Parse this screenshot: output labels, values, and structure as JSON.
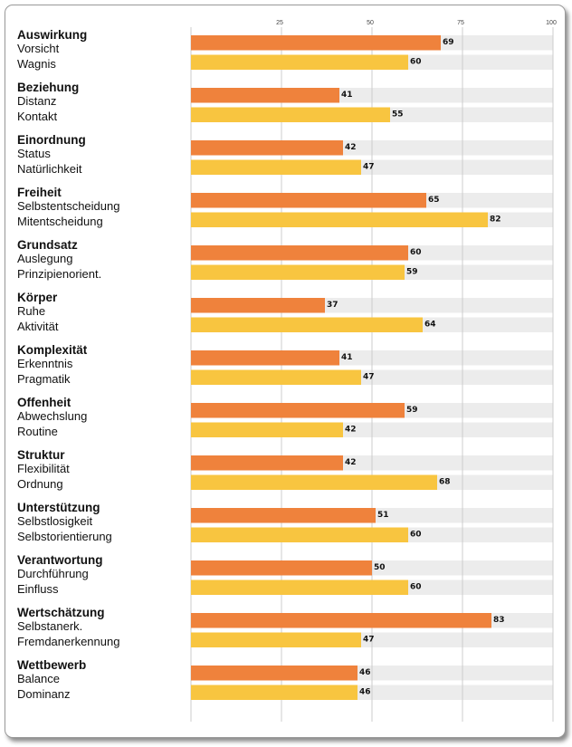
{
  "chart_data": {
    "type": "bar",
    "orientation": "horizontal",
    "xlim": [
      0,
      100
    ],
    "xticks": [
      25,
      50,
      75,
      100
    ],
    "grid": true,
    "colors": {
      "first": "#ef823c",
      "second": "#f8c540",
      "track": "#ececec",
      "grid": "#cccccc"
    },
    "groups": [
      {
        "name": "Auswirkung",
        "items": [
          {
            "label": "Vorsicht",
            "value": 69
          },
          {
            "label": "Wagnis",
            "value": 60
          }
        ]
      },
      {
        "name": "Beziehung",
        "items": [
          {
            "label": "Distanz",
            "value": 41
          },
          {
            "label": "Kontakt",
            "value": 55
          }
        ]
      },
      {
        "name": "Einordnung",
        "items": [
          {
            "label": "Status",
            "value": 42
          },
          {
            "label": "Natürlichkeit",
            "value": 47
          }
        ]
      },
      {
        "name": "Freiheit",
        "items": [
          {
            "label": "Selbstentscheidung",
            "value": 65
          },
          {
            "label": "Mitentscheidung",
            "value": 82
          }
        ]
      },
      {
        "name": "Grundsatz",
        "items": [
          {
            "label": "Auslegung",
            "value": 60
          },
          {
            "label": "Prinzipienorient.",
            "value": 59
          }
        ]
      },
      {
        "name": "Körper",
        "items": [
          {
            "label": "Ruhe",
            "value": 37
          },
          {
            "label": "Aktivität",
            "value": 64
          }
        ]
      },
      {
        "name": "Komplexität",
        "items": [
          {
            "label": "Erkenntnis",
            "value": 41
          },
          {
            "label": "Pragmatik",
            "value": 47
          }
        ]
      },
      {
        "name": "Offenheit",
        "items": [
          {
            "label": "Abwechslung",
            "value": 59
          },
          {
            "label": "Routine",
            "value": 42
          }
        ]
      },
      {
        "name": "Struktur",
        "items": [
          {
            "label": "Flexibilität",
            "value": 42
          },
          {
            "label": "Ordnung",
            "value": 68
          }
        ]
      },
      {
        "name": "Unterstützung",
        "items": [
          {
            "label": "Selbstlosigkeit",
            "value": 51
          },
          {
            "label": "Selbstorientierung",
            "value": 60
          }
        ]
      },
      {
        "name": "Verantwortung",
        "items": [
          {
            "label": "Durchführung",
            "value": 50
          },
          {
            "label": "Einfluss",
            "value": 60
          }
        ]
      },
      {
        "name": "Wertschätzung",
        "items": [
          {
            "label": "Selbstanerk.",
            "value": 83
          },
          {
            "label": "Fremdanerkennung",
            "value": 47
          }
        ]
      },
      {
        "name": "Wettbewerb",
        "items": [
          {
            "label": "Balance",
            "value": 46
          },
          {
            "label": "Dominanz",
            "value": 46
          }
        ]
      }
    ]
  }
}
